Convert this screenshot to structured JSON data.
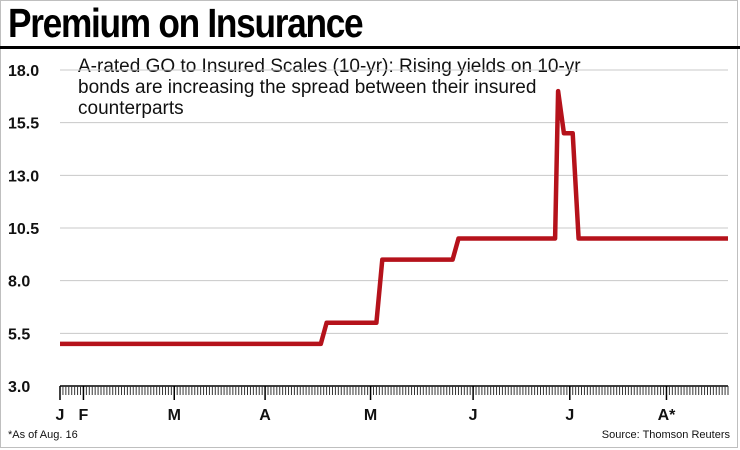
{
  "chart_data": {
    "type": "line",
    "title": "Premium on Insurance",
    "subtitle": "A-rated GO to Insured Scales (10-yr): Rising yields on 10-yr bonds are increasing the spread between their insured counterparts",
    "footnote": "*As of Aug. 16",
    "source": "Source: Thomson Reuters",
    "xlabel": "",
    "ylabel": "",
    "ylim": [
      3.0,
      18.0
    ],
    "yticks": [
      "18.0",
      "15.5",
      "13.0",
      "10.5",
      "8.0",
      "5.5",
      "3.0"
    ],
    "xlim": [
      0,
      228
    ],
    "xticks": [
      {
        "label": "J",
        "x": 0
      },
      {
        "label": "F",
        "x": 8
      },
      {
        "label": "M",
        "x": 39
      },
      {
        "label": "A",
        "x": 70
      },
      {
        "label": "M",
        "x": 106
      },
      {
        "label": "J",
        "x": 141
      },
      {
        "label": "J",
        "x": 174
      },
      {
        "label": "A*",
        "x": 207
      }
    ],
    "grid": true,
    "line_color": "#b5121b",
    "series": [
      {
        "name": "",
        "x": [
          0,
          89,
          91,
          108,
          110,
          134,
          136,
          169,
          170,
          172,
          175,
          177,
          228
        ],
        "values": [
          5.0,
          5.0,
          6.0,
          6.0,
          9.0,
          9.0,
          10.0,
          10.0,
          17.0,
          15.0,
          15.0,
          10.0,
          10.0
        ]
      }
    ]
  }
}
